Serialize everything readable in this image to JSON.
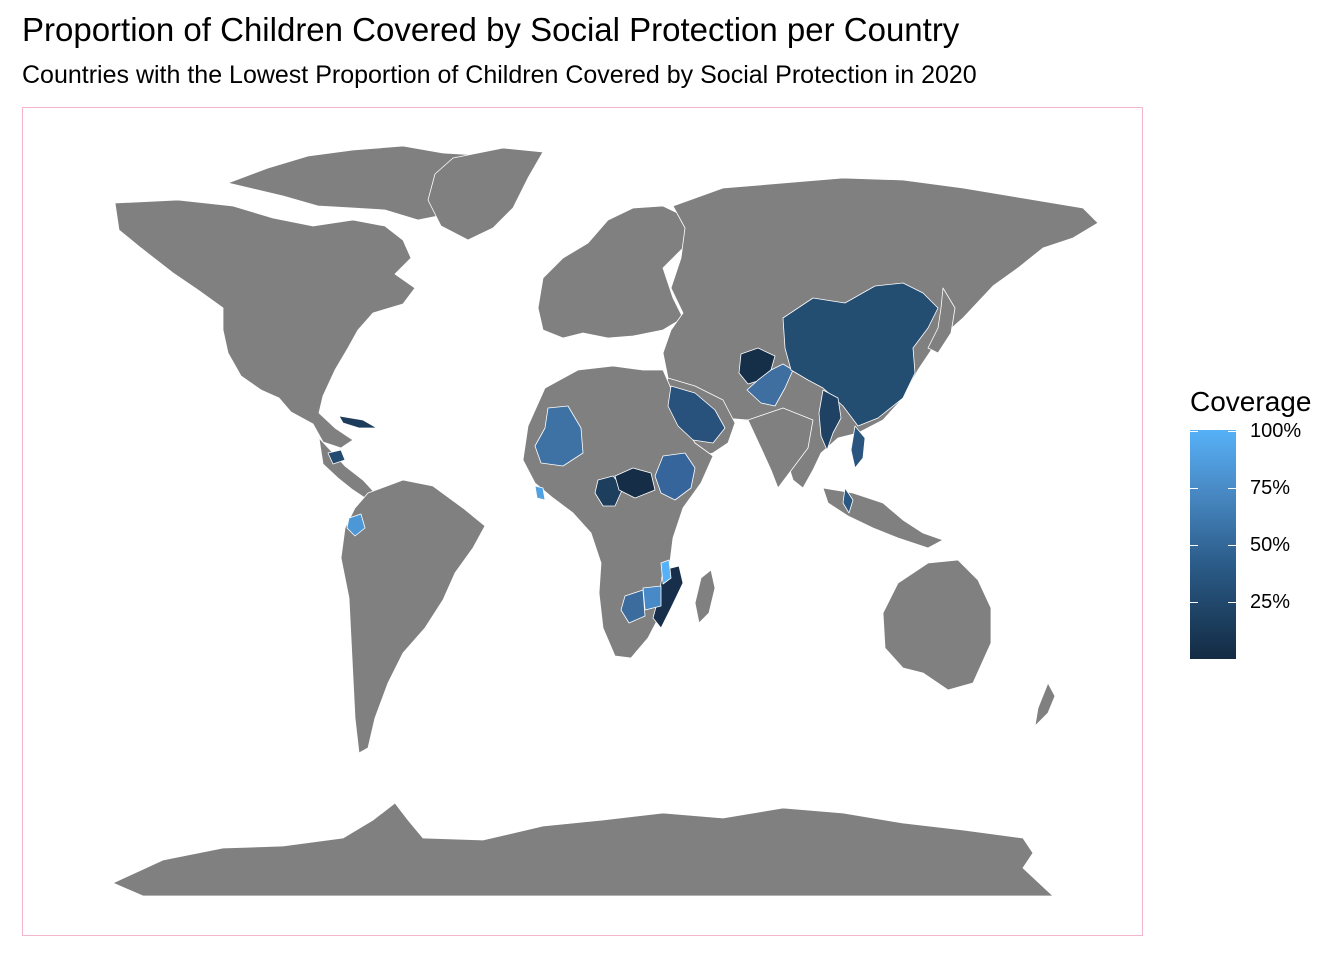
{
  "title": "Proportion of Children Covered by Social Protection per Country",
  "subtitle": "Countries with the Lowest Proportion of Children Covered by Social Protection in 2020",
  "legend": {
    "title": "Coverage",
    "labels": [
      "100%",
      "75%",
      "50%",
      "25%"
    ]
  },
  "colors": {
    "land": "#808080",
    "border": "#ffffff",
    "scale_low": "#132b43",
    "scale_high": "#56b1f7",
    "panel_border": "#f4b6cf"
  },
  "highlighted_countries": [
    {
      "name": "Afghanistan",
      "coverage_pct": 2
    },
    {
      "name": "Pakistan",
      "coverage_pct": 55
    },
    {
      "name": "China",
      "coverage_pct": 30
    },
    {
      "name": "Myanmar",
      "coverage_pct": 20
    },
    {
      "name": "Saudi Arabia",
      "coverage_pct": 35
    },
    {
      "name": "Mali",
      "coverage_pct": 65
    },
    {
      "name": "Ethiopia",
      "coverage_pct": 50
    },
    {
      "name": "Central African Republic",
      "coverage_pct": 8
    },
    {
      "name": "Cameroon",
      "coverage_pct": 25
    },
    {
      "name": "Mozambique",
      "coverage_pct": 10
    },
    {
      "name": "Botswana",
      "coverage_pct": 55
    },
    {
      "name": "Zimbabwe",
      "coverage_pct": 75
    },
    {
      "name": "Malawi",
      "coverage_pct": 100
    },
    {
      "name": "Ecuador",
      "coverage_pct": 85
    },
    {
      "name": "Cuba",
      "coverage_pct": 20
    },
    {
      "name": "Honduras",
      "coverage_pct": 30
    },
    {
      "name": "Malaysia",
      "coverage_pct": 40
    },
    {
      "name": "Vietnam",
      "coverage_pct": 35
    },
    {
      "name": "Liberia",
      "coverage_pct": 90
    }
  ]
}
